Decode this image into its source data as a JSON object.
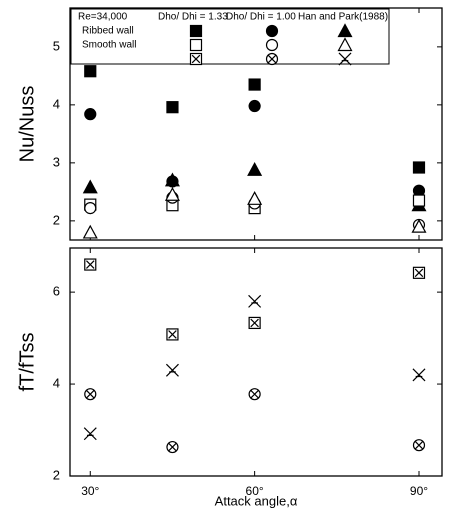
{
  "chart_data": [
    {
      "type": "scatter",
      "y_label": "Nu/Nuss",
      "legend_columns": [
        "Re=34,000",
        "Dho/ Dhi = 1.33",
        "Dho/ Dhi = 1.00",
        "Han and Park(1988)"
      ],
      "legend_rows": [
        "Ribbed wall",
        "Smooth wall"
      ],
      "x": [
        30,
        45,
        60,
        90
      ],
      "xlim": [
        26.3,
        94.2
      ],
      "ylim": [
        1.67,
        5.67
      ],
      "yticks": [
        2,
        3,
        4,
        5
      ],
      "series": [
        {
          "marker": "square",
          "filled": true,
          "color": "#000000",
          "values": [
            4.58,
            3.96,
            4.35,
            2.92
          ]
        },
        {
          "marker": "circle",
          "filled": true,
          "color": "#000000",
          "values": [
            3.84,
            2.68,
            3.98,
            2.52
          ]
        },
        {
          "marker": "triangle",
          "filled": true,
          "color": "#000000",
          "values": [
            2.58,
            2.7,
            2.88,
            2.27
          ]
        },
        {
          "marker": "square",
          "filled": false,
          "color": "#000000",
          "values": [
            2.28,
            2.27,
            2.22,
            2.35
          ]
        },
        {
          "marker": "circle",
          "filled": false,
          "color": "#000000",
          "values": [
            2.22,
            2.4,
            2.3,
            1.93
          ]
        },
        {
          "marker": "triangle",
          "filled": false,
          "color": "#000000",
          "values": [
            1.8,
            2.45,
            2.38,
            1.9
          ]
        }
      ]
    },
    {
      "type": "scatter",
      "y_label": "fT/fTss",
      "x_label": "Attack angle,α",
      "x": [
        30,
        45,
        60,
        90
      ],
      "xlim": [
        26.3,
        94.2
      ],
      "ylim": [
        2,
        6.96
      ],
      "yticks": [
        2,
        4,
        6
      ],
      "xticks": [
        {
          "value": 30,
          "label": "30°"
        },
        {
          "value": 60,
          "label": "60°"
        },
        {
          "value": 90,
          "label": "90°"
        }
      ],
      "series": [
        {
          "marker": "crossed-square",
          "filled": false,
          "color": "#000000",
          "values": [
            6.6,
            5.08,
            5.33,
            6.42
          ]
        },
        {
          "marker": "crossed-circle",
          "filled": false,
          "color": "#000000",
          "values": [
            3.78,
            2.63,
            3.78,
            2.67
          ]
        },
        {
          "marker": "x",
          "filled": false,
          "color": "#000000",
          "values": [
            2.92,
            4.3,
            5.8,
            4.2
          ]
        }
      ]
    }
  ]
}
